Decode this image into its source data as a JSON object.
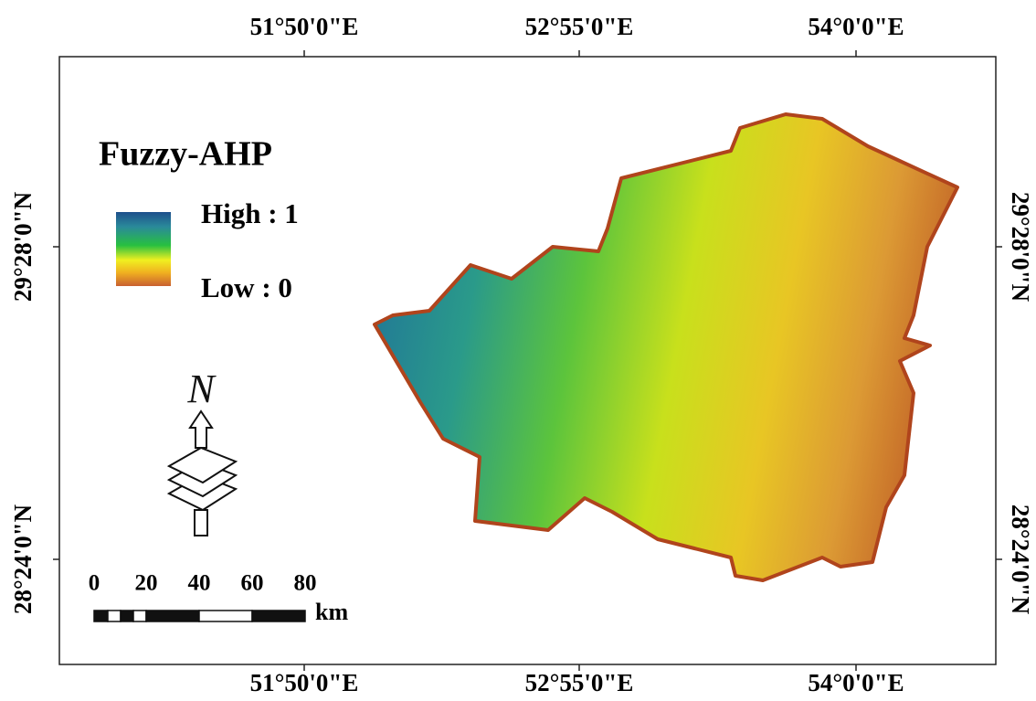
{
  "map": {
    "frame": {
      "top_labels": [
        "51°50'0\"E",
        "52°55'0\"E",
        "54°0'0\"E"
      ],
      "bottom_labels": [
        "51°50'0\"E",
        "52°55'0\"E",
        "54°0'0\"E"
      ],
      "left_labels": [
        "29°28'0\"N",
        "28°24'0\"N"
      ],
      "right_labels": [
        "29°28'0\"N",
        "28°24'0\"N"
      ]
    },
    "legend": {
      "title": "Fuzzy-AHP",
      "high": "High : 1",
      "low": "Low : 0"
    },
    "north_arrow": "N",
    "scale_bar": {
      "labels": [
        "0",
        "20",
        "40",
        "60",
        "80"
      ],
      "unit": "km"
    }
  }
}
